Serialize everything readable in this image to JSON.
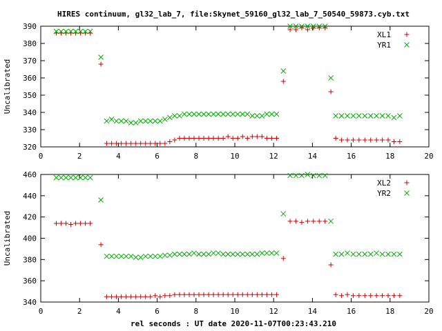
{
  "title": "HIRES continuum, gl32_lab_7, file:Skynet_59160_gl32_lab_7_50540_59873.cyb.txt",
  "xlabel": "rel seconds : UT date 2020-11-07T00:23:43.210",
  "colors": {
    "plus_series": "#cc0000",
    "x_series": "#00aa00",
    "axis": "#000000"
  },
  "chart_data": [
    {
      "type": "scatter",
      "ylabel": "Uncalibrated",
      "xlim": [
        0,
        20
      ],
      "ylim": [
        320,
        390
      ],
      "xticks": [
        0,
        2,
        4,
        6,
        8,
        10,
        12,
        14,
        16,
        18,
        20
      ],
      "yticks": [
        320,
        330,
        340,
        350,
        360,
        370,
        380,
        390
      ],
      "grid": false,
      "legend_position": "top-right",
      "series": [
        {
          "name": "XL1",
          "marker": "plus",
          "color": "#cc0000",
          "x": [
            0.8,
            1.05,
            1.3,
            1.55,
            1.8,
            2.05,
            2.3,
            2.55,
            3.1,
            3.4,
            3.65,
            3.9,
            4.15,
            4.4,
            4.65,
            4.9,
            5.15,
            5.4,
            5.65,
            5.9,
            6.15,
            6.4,
            6.65,
            6.9,
            7.15,
            7.4,
            7.65,
            7.9,
            8.15,
            8.4,
            8.65,
            8.9,
            9.15,
            9.4,
            9.65,
            9.9,
            10.15,
            10.4,
            10.65,
            10.9,
            11.15,
            11.4,
            11.65,
            11.9,
            12.15,
            12.5,
            12.85,
            13.15,
            13.45,
            13.75,
            14.05,
            14.35,
            14.65,
            14.95,
            15.2,
            15.5,
            15.8,
            16.1,
            16.4,
            16.7,
            17.0,
            17.3,
            17.6,
            17.9,
            18.2,
            18.5
          ],
          "y": [
            386,
            386,
            386,
            386,
            386,
            386,
            386,
            386,
            368,
            322,
            322,
            322,
            322,
            322,
            322,
            322,
            322,
            322,
            322,
            322,
            322,
            322,
            323,
            324,
            325,
            325,
            325,
            325,
            325,
            325,
            325,
            325,
            325,
            325,
            326,
            325,
            325,
            326,
            325,
            326,
            326,
            326,
            325,
            325,
            325,
            358,
            388,
            388,
            389,
            388,
            389,
            389,
            389,
            352,
            325,
            324,
            324,
            324,
            324,
            324,
            324,
            324,
            324,
            324,
            323,
            323
          ]
        },
        {
          "name": "YR1",
          "marker": "cross",
          "color": "#00aa00",
          "x": [
            0.8,
            1.05,
            1.3,
            1.55,
            1.8,
            2.05,
            2.3,
            2.55,
            3.1,
            3.4,
            3.65,
            3.9,
            4.15,
            4.4,
            4.65,
            4.9,
            5.15,
            5.4,
            5.65,
            5.9,
            6.15,
            6.4,
            6.65,
            6.9,
            7.15,
            7.4,
            7.65,
            7.9,
            8.15,
            8.4,
            8.65,
            8.9,
            9.15,
            9.4,
            9.65,
            9.9,
            10.15,
            10.4,
            10.65,
            10.9,
            11.15,
            11.4,
            11.65,
            11.9,
            12.15,
            12.5,
            12.85,
            13.15,
            13.45,
            13.75,
            14.05,
            14.35,
            14.65,
            14.95,
            15.2,
            15.5,
            15.8,
            16.1,
            16.4,
            16.7,
            17.0,
            17.3,
            17.6,
            17.9,
            18.2,
            18.5
          ],
          "y": [
            387,
            387,
            387,
            387,
            387,
            387,
            387,
            387,
            372,
            335,
            336,
            335,
            335,
            335,
            334,
            334,
            335,
            335,
            335,
            335,
            335,
            336,
            337,
            338,
            338,
            339,
            339,
            339,
            339,
            339,
            339,
            339,
            339,
            339,
            339,
            339,
            339,
            339,
            339,
            338,
            338,
            338,
            339,
            339,
            339,
            364,
            390,
            390,
            390,
            390,
            390,
            390,
            390,
            360,
            338,
            338,
            338,
            338,
            338,
            338,
            338,
            338,
            338,
            338,
            337,
            338
          ]
        }
      ]
    },
    {
      "type": "scatter",
      "ylabel": "Uncalibrated",
      "xlim": [
        0,
        20
      ],
      "ylim": [
        340,
        460
      ],
      "xticks": [
        0,
        2,
        4,
        6,
        8,
        10,
        12,
        14,
        16,
        18,
        20
      ],
      "yticks": [
        340,
        360,
        380,
        400,
        420,
        440,
        460
      ],
      "grid": false,
      "legend_position": "top-right",
      "series": [
        {
          "name": "XL2",
          "marker": "plus",
          "color": "#cc0000",
          "x": [
            0.8,
            1.05,
            1.3,
            1.55,
            1.8,
            2.05,
            2.3,
            2.55,
            3.1,
            3.4,
            3.65,
            3.9,
            4.15,
            4.4,
            4.65,
            4.9,
            5.15,
            5.4,
            5.65,
            5.9,
            6.15,
            6.4,
            6.65,
            6.9,
            7.15,
            7.4,
            7.65,
            7.9,
            8.15,
            8.4,
            8.65,
            8.9,
            9.15,
            9.4,
            9.65,
            9.9,
            10.15,
            10.4,
            10.65,
            10.9,
            11.15,
            11.4,
            11.65,
            11.9,
            12.15,
            12.5,
            12.85,
            13.15,
            13.45,
            13.75,
            14.05,
            14.35,
            14.65,
            14.95,
            15.2,
            15.5,
            15.8,
            16.1,
            16.4,
            16.7,
            17.0,
            17.3,
            17.6,
            17.9,
            18.2,
            18.5
          ],
          "y": [
            414,
            414,
            414,
            413,
            414,
            414,
            414,
            414,
            394,
            345,
            345,
            345,
            345,
            345,
            345,
            345,
            345,
            345,
            345,
            346,
            345,
            346,
            346,
            347,
            347,
            347,
            347,
            347,
            347,
            347,
            347,
            347,
            347,
            347,
            347,
            347,
            347,
            347,
            347,
            347,
            347,
            347,
            347,
            347,
            347,
            381,
            416,
            416,
            415,
            416,
            416,
            416,
            416,
            375,
            347,
            346,
            347,
            346,
            346,
            346,
            346,
            346,
            346,
            346,
            346,
            346
          ]
        },
        {
          "name": "YR2",
          "marker": "cross",
          "color": "#00aa00",
          "x": [
            0.8,
            1.05,
            1.3,
            1.55,
            1.8,
            2.05,
            2.3,
            2.55,
            3.1,
            3.4,
            3.65,
            3.9,
            4.15,
            4.4,
            4.65,
            4.9,
            5.15,
            5.4,
            5.65,
            5.9,
            6.15,
            6.4,
            6.65,
            6.9,
            7.15,
            7.4,
            7.65,
            7.9,
            8.15,
            8.4,
            8.65,
            8.9,
            9.15,
            9.4,
            9.65,
            9.9,
            10.15,
            10.4,
            10.65,
            10.9,
            11.15,
            11.4,
            11.65,
            11.9,
            12.15,
            12.5,
            12.85,
            13.15,
            13.45,
            13.75,
            14.05,
            14.35,
            14.65,
            14.95,
            15.2,
            15.5,
            15.8,
            16.1,
            16.4,
            16.7,
            17.0,
            17.3,
            17.6,
            17.9,
            18.2,
            18.5
          ],
          "y": [
            457,
            457,
            457,
            457,
            457,
            457,
            457,
            457,
            436,
            383,
            383,
            383,
            383,
            383,
            383,
            382,
            382,
            383,
            383,
            383,
            383,
            384,
            384,
            385,
            385,
            385,
            385,
            386,
            385,
            385,
            385,
            386,
            386,
            385,
            385,
            385,
            385,
            385,
            385,
            385,
            385,
            386,
            386,
            386,
            386,
            423,
            459,
            459,
            459,
            460,
            459,
            459,
            459,
            416,
            385,
            385,
            386,
            385,
            385,
            385,
            385,
            386,
            385,
            385,
            385,
            385
          ]
        }
      ]
    }
  ]
}
